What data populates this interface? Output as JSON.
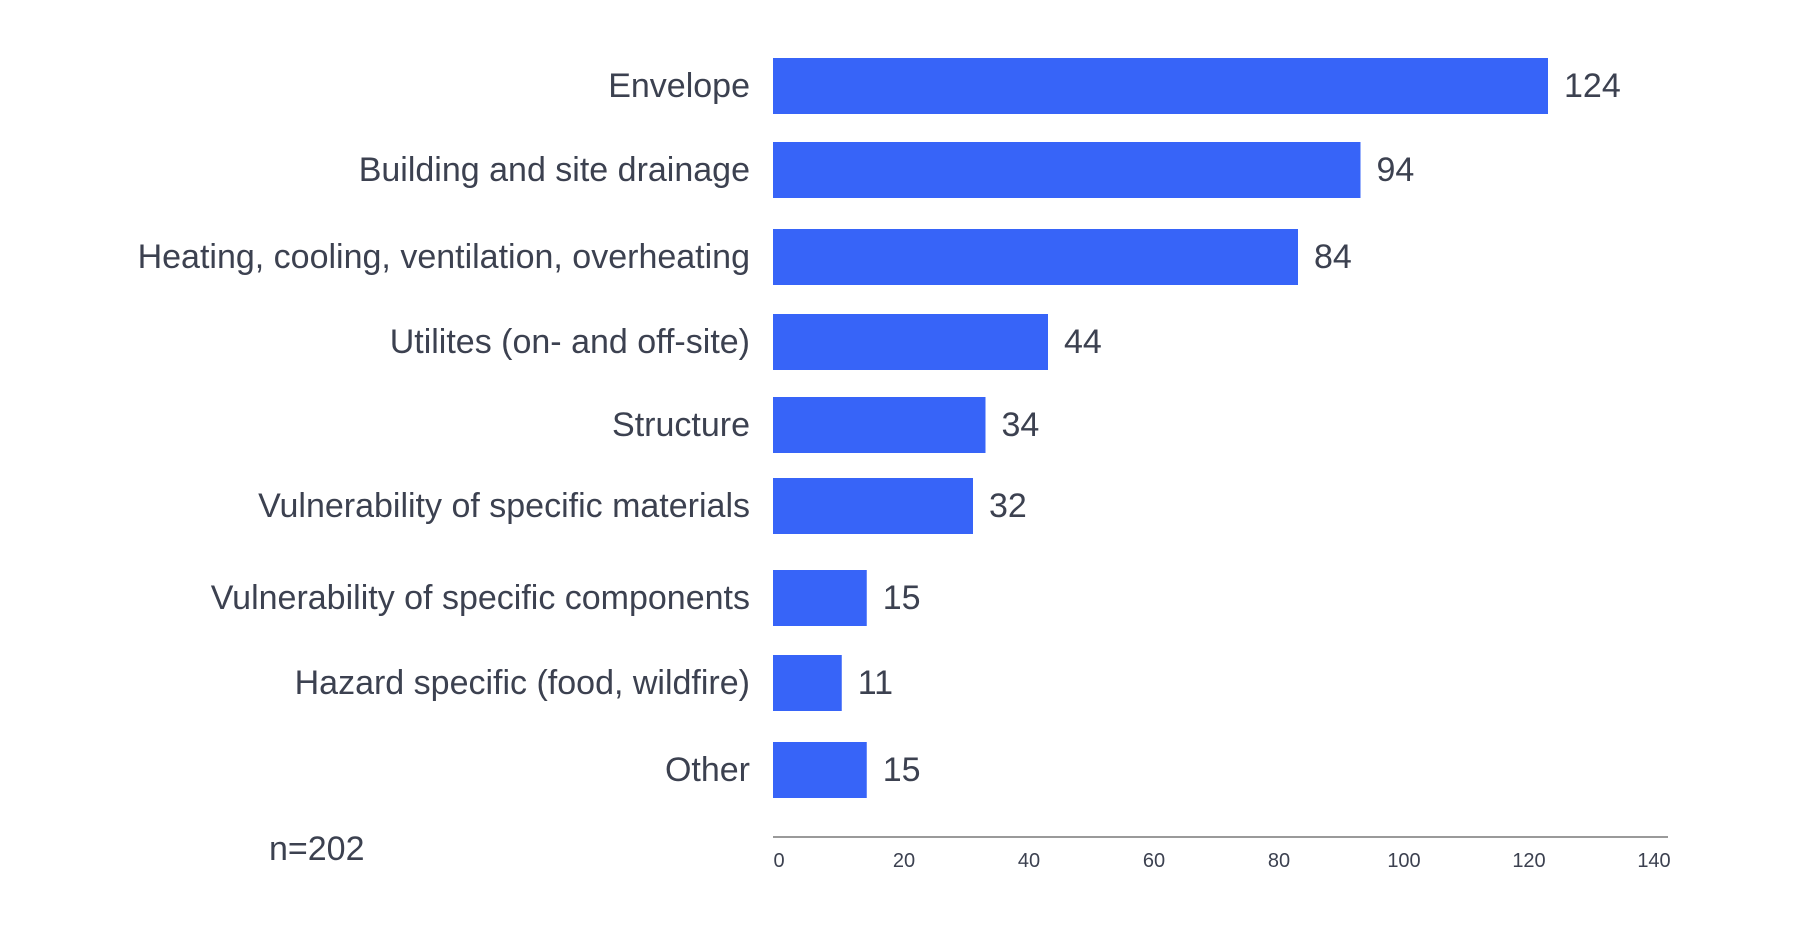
{
  "chart_data": {
    "type": "bar",
    "orientation": "horizontal",
    "categories": [
      "Envelope",
      "Building and site drainage",
      "Heating, cooling, ventilation, overheating",
      "Utilites (on- and off-site)",
      "Structure",
      "Vulnerability of specific materials",
      "Vulnerability of specific components",
      "Hazard specific (food, wildfire)",
      "Other"
    ],
    "values": [
      124,
      94,
      84,
      44,
      34,
      32,
      15,
      11,
      15
    ],
    "xlim": [
      0,
      140
    ],
    "x_ticks": [
      "0",
      "20",
      "40",
      "60",
      "80",
      "100",
      "120",
      "140"
    ],
    "note": "n=202",
    "bar_color": "#3764f8",
    "text_color": "#3c4150",
    "axis_color": "#9a9a9a",
    "grid": false
  }
}
